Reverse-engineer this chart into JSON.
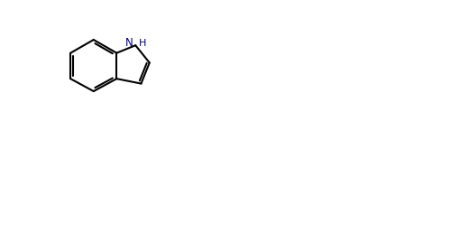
{
  "bg_color": "#ffffff",
  "line_color": "#000000",
  "text_color": "#000000",
  "nh_color": "#0000cd",
  "lw": 1.5,
  "figsize": [
    5.2,
    2.58
  ],
  "dpi": 100
}
